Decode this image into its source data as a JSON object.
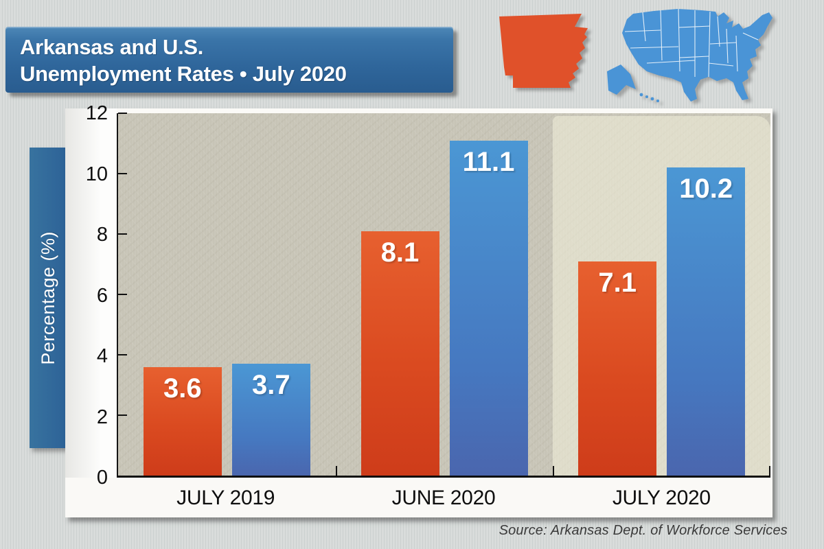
{
  "title": {
    "line1": "Arkansas and U.S.",
    "line2": "Unemployment Rates • July 2020"
  },
  "y_axis": {
    "label": "Percentage (%)"
  },
  "source": "Source: Arkansas Dept. of Workforce Services",
  "icons": {
    "arkansas_shape_color": "#e0512a",
    "us_map_color": "#4a94d6"
  },
  "colors": {
    "arkansas_bar": "#d8481f",
    "us_bar": "#4683c9",
    "banner_blue": "#2f669b",
    "plot_background": "#c7c4b6",
    "highlight_panel": "#f3f0db"
  },
  "chart_data": {
    "type": "bar",
    "categories": [
      "JULY 2019",
      "JUNE 2020",
      "JULY 2020"
    ],
    "series": [
      {
        "name": "Arkansas",
        "color": "#d8481f",
        "values": [
          3.6,
          8.1,
          7.1
        ]
      },
      {
        "name": "United States",
        "color": "#4683c9",
        "values": [
          3.7,
          11.1,
          10.2
        ]
      }
    ],
    "title": "Arkansas and U.S. Unemployment Rates • July 2020",
    "xlabel": "",
    "ylabel": "Percentage (%)",
    "ylim": [
      0,
      12
    ],
    "yticks": [
      0,
      2,
      4,
      6,
      8,
      10,
      12
    ],
    "grid": false,
    "legend": "none",
    "highlighted_category": "JULY 2020",
    "value_labels": "inside-top"
  }
}
